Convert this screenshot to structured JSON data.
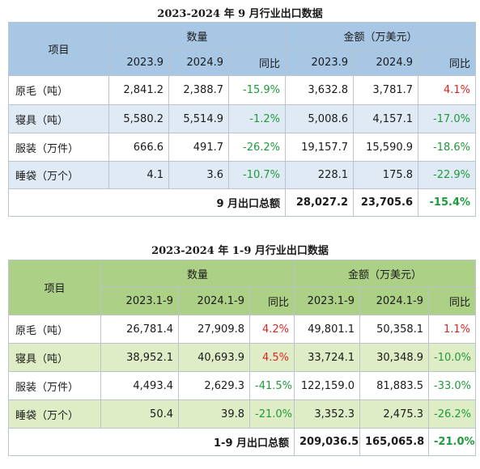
{
  "table1": {
    "title": "2023-2024 年 9 月行业出口数据",
    "header": {
      "item": "项目",
      "qty": "数量",
      "amount": "金额（万美元）",
      "y1": "2023.9",
      "y2": "2024.9",
      "yoy": "同比"
    },
    "rows": [
      {
        "name": "原毛（吨）",
        "q1": "2,841.2",
        "q2": "2,388.7",
        "qyoy": "-15.9%",
        "a1": "3,632.8",
        "a2": "3,781.7",
        "ayoy": "4.1%"
      },
      {
        "name": "寝具（吨）",
        "q1": "5,580.2",
        "q2": "5,514.9",
        "qyoy": "-1.2%",
        "a1": "5,008.6",
        "a2": "4,157.1",
        "ayoy": "-17.0%"
      },
      {
        "name": "服装（万件）",
        "q1": "666.6",
        "q2": "491.7",
        "qyoy": "-26.2%",
        "a1": "19,157.7",
        "a2": "15,590.9",
        "ayoy": "-18.6%"
      },
      {
        "name": "睡袋（万个）",
        "q1": "4.1",
        "q2": "3.6",
        "qyoy": "-10.7%",
        "a1": "228.1",
        "a2": "175.8",
        "ayoy": "-22.9%"
      }
    ],
    "total": {
      "label": "9 月出口总额",
      "a1": "28,027.2",
      "a2": "23,705.6",
      "ayoy": "-15.4%"
    }
  },
  "table2": {
    "title": "2023-2024 年 1-9 月行业出口数据",
    "header": {
      "item": "项目",
      "qty": "数量",
      "amount": "金额（万美元）",
      "y1": "2023.1-9",
      "y2": "2024.1-9",
      "yoy": "同比"
    },
    "rows": [
      {
        "name": "原毛（吨）",
        "q1": "26,781.4",
        "q2": "27,909.8",
        "qyoy": "4.2%",
        "a1": "49,801.1",
        "a2": "50,358.1",
        "ayoy": "1.1%"
      },
      {
        "name": "寝具（吨）",
        "q1": "38,952.1",
        "q2": "40,693.9",
        "qyoy": "4.5%",
        "a1": "33,724.1",
        "a2": "30,348.9",
        "ayoy": "-10.0%"
      },
      {
        "name": "服装（万件）",
        "q1": "4,493.4",
        "q2": "2,629.3",
        "qyoy": "-41.5%",
        "a1": "122,159.0",
        "a2": "81,883.5",
        "ayoy": "-33.0%"
      },
      {
        "name": "睡袋（万个）",
        "q1": "50.4",
        "q2": "39.8",
        "qyoy": "-21.0%",
        "a1": "3,352.3",
        "a2": "2,475.3",
        "ayoy": "-26.2%"
      }
    ],
    "total": {
      "label": "1-9 月出口总额",
      "a1": "209,036.5",
      "a2": "165,065.8",
      "ayoy": "-21.0%"
    }
  },
  "colors": {
    "positive": "#e02424",
    "negative": "#1f9a3a",
    "table1_header": "#a7c7e4",
    "table2_header": "#acd086"
  }
}
